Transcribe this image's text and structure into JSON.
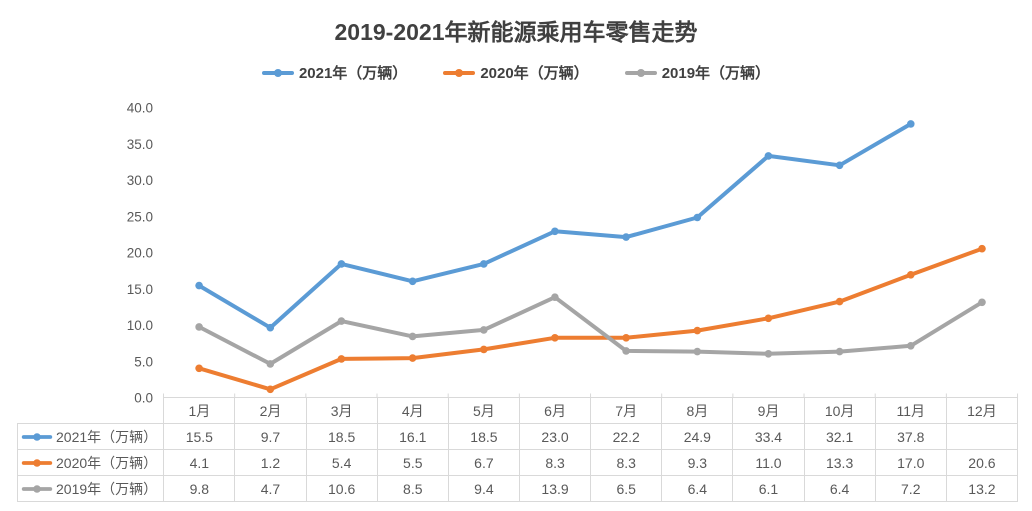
{
  "title": "2019-2021年新能源乘用车零售走势",
  "chart_data": {
    "type": "line",
    "title": "2019-2021年新能源乘用车零售走势",
    "categories": [
      "1月",
      "2月",
      "3月",
      "4月",
      "5月",
      "6月",
      "7月",
      "8月",
      "9月",
      "10月",
      "11月",
      "12月"
    ],
    "series": [
      {
        "name": "2021年（万辆）",
        "color": "#5B9BD5",
        "values": [
          15.5,
          9.7,
          18.5,
          16.1,
          18.5,
          23.0,
          22.2,
          24.9,
          33.4,
          32.1,
          37.8,
          null
        ]
      },
      {
        "name": "2020年（万辆）",
        "color": "#ED7D31",
        "values": [
          4.1,
          1.2,
          5.4,
          5.5,
          6.7,
          8.3,
          8.3,
          9.3,
          11.0,
          13.3,
          17.0,
          20.6
        ]
      },
      {
        "name": "2019年（万辆）",
        "color": "#A5A5A5",
        "values": [
          9.8,
          4.7,
          10.6,
          8.5,
          9.4,
          13.9,
          6.5,
          6.4,
          6.1,
          6.4,
          7.2,
          13.2
        ]
      }
    ],
    "ylim": [
      0,
      40
    ],
    "ytick_step": 5,
    "ytick_labels": [
      "0.0",
      "5.0",
      "10.0",
      "15.0",
      "20.0",
      "25.0",
      "30.0",
      "35.0",
      "40.0"
    ],
    "grid": false,
    "legend_position": "top",
    "marker": "circle",
    "data_table_shown": true
  },
  "colors": {
    "series_2021": "#5B9BD5",
    "series_2020": "#ED7D31",
    "series_2019": "#A5A5A5",
    "title_text": "#404040",
    "axis_text": "#595959",
    "table_border": "#D9D9D9",
    "background": "#FFFFFF"
  }
}
